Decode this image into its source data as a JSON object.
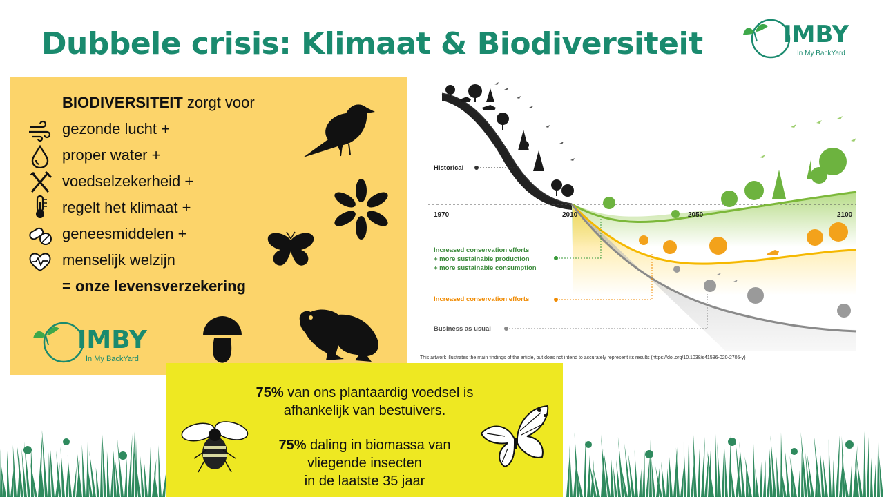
{
  "title": "Dubbele crisis: Klimaat & Biodiversiteit",
  "logo": {
    "brand": "IMBY",
    "tagline": "In My BackYard"
  },
  "benefits": {
    "heading_bold": "BIODIVERSITEIT",
    "heading_rest": " zorgt voor",
    "items": [
      {
        "icon": "wind-icon",
        "label": "gezonde lucht +"
      },
      {
        "icon": "water-drop-icon",
        "label": "proper water +"
      },
      {
        "icon": "fork-knife-icon",
        "label": "voedselzekerheid +"
      },
      {
        "icon": "thermometer-icon",
        "label": "regelt het klimaat +"
      },
      {
        "icon": "pills-icon",
        "label": "geneesmiddelen +"
      },
      {
        "icon": "heart-pulse-icon",
        "label": "menselijk welzijn"
      }
    ],
    "conclusion": "= onze levensverzekering"
  },
  "chart": {
    "axis_ticks": [
      "1970",
      "2010",
      "2050",
      "2100"
    ],
    "labels": {
      "historical": "Historical",
      "green_1": "Increased conservation efforts",
      "green_2": "+ more sustainable production",
      "green_3": "+ more sustainable consumption",
      "orange": "Increased conservation efforts",
      "gray": "Business as usual"
    },
    "colors": {
      "green": "#7cb83a",
      "orange": "#f5b800",
      "gray": "#8a8a8a",
      "orange_text": "#f08a00",
      "green_text": "#3a8a3a"
    },
    "caption": "This artwork illustrates the main findings of the article, but does not intend to accurately represent its results (https://doi.org/10.1038/s41586-020-2705-y)"
  },
  "facts": {
    "fact1_bold": "75%",
    "fact1_line1": " van ons plantaardig voedsel is",
    "fact1_line2": "afhankelijk van bestuivers.",
    "fact2_bold": "75%",
    "fact2_line1": " daling in biomassa van",
    "fact2_line2": "vliegende insecten",
    "fact2_line3": "in de laatste 35 jaar"
  }
}
